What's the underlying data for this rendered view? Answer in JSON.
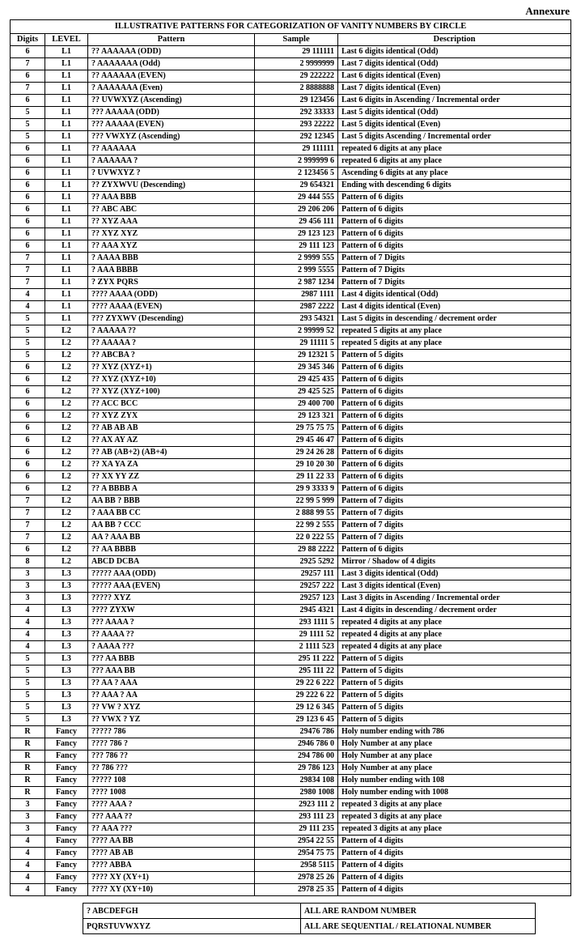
{
  "annexure_label": "Annexure",
  "title": "ILLUSTRATIVE PATTERNS FOR CATEGORIZATION OF VANITY NUMBERS BY CIRCLE",
  "headers": {
    "digits": "Digits",
    "level": "LEVEL",
    "pattern": "Pattern",
    "sample": "Sample",
    "description": "Description"
  },
  "rows": [
    {
      "d": "6",
      "l": "L1",
      "p": "?? AAAAAA (ODD)",
      "s": "29 111111",
      "desc": "Last 6 digits identical (Odd)"
    },
    {
      "d": "7",
      "l": "L1",
      "p": "? AAAAAAA (Odd)",
      "s": "2 9999999",
      "desc": "Last 7 digits identical (Odd)"
    },
    {
      "d": "6",
      "l": "L1",
      "p": "?? AAAAAA (EVEN)",
      "s": "29 222222",
      "desc": "Last 6 digits identical (Even)"
    },
    {
      "d": "7",
      "l": "L1",
      "p": "? AAAAAAA (Even)",
      "s": "2 8888888",
      "desc": "Last 7 digits identical (Even)"
    },
    {
      "d": "6",
      "l": "L1",
      "p": "?? UVWXYZ (Ascending)",
      "s": "29 123456",
      "desc": "Last 6 digits in Ascending / Incremental order"
    },
    {
      "d": "5",
      "l": "L1",
      "p": "??? AAAAA (ODD)",
      "s": "292 33333",
      "desc": "Last 5 digits identical (Odd)"
    },
    {
      "d": "5",
      "l": "L1",
      "p": "??? AAAAA (EVEN)",
      "s": "293 22222",
      "desc": "Last 5 digits identical (Even)"
    },
    {
      "d": "5",
      "l": "L1",
      "p": "??? VWXYZ (Ascending)",
      "s": "292 12345",
      "desc": "Last 5 digits Ascending / Incremental order"
    },
    {
      "d": "6",
      "l": "L1",
      "p": "?? AAAAAA",
      "s": "29 111111",
      "desc": "repeated 6 digits at any place"
    },
    {
      "d": "6",
      "l": "L1",
      "p": "? AAAAAA ?",
      "s": "2 999999 6",
      "desc": "repeated 6 digits at any place"
    },
    {
      "d": "6",
      "l": "L1",
      "p": "? UVWXYZ ?",
      "s": "2 123456 5",
      "desc": "Ascending 6 digits at any place"
    },
    {
      "d": "6",
      "l": "L1",
      "p": "?? ZYXWVU (Descending)",
      "s": "29 654321",
      "desc": "Ending with descending 6 digits"
    },
    {
      "d": "6",
      "l": "L1",
      "p": "?? AAA BBB",
      "s": "29 444 555",
      "desc": "Pattern of 6 digits"
    },
    {
      "d": "6",
      "l": "L1",
      "p": "?? ABC ABC",
      "s": "29 206 206",
      "desc": "Pattern of 6 digits"
    },
    {
      "d": "6",
      "l": "L1",
      "p": "?? XYZ AAA",
      "s": "29 456 111",
      "desc": "Pattern of 6 digits"
    },
    {
      "d": "6",
      "l": "L1",
      "p": "?? XYZ XYZ",
      "s": "29 123 123",
      "desc": "Pattern of 6 digits"
    },
    {
      "d": "6",
      "l": "L1",
      "p": "?? AAA XYZ",
      "s": "29 111 123",
      "desc": "Pattern of 6 digits"
    },
    {
      "d": "7",
      "l": "L1",
      "p": "? AAAA BBB",
      "s": "2 9999  555",
      "desc": "Pattern of 7 Digits"
    },
    {
      "d": "7",
      "l": "L1",
      "p": "? AAA BBBB",
      "s": "2 999  5555",
      "desc": "Pattern of 7 Digits"
    },
    {
      "d": "7",
      "l": "L1",
      "p": "? ZYX PQRS",
      "s": "2 987 1234",
      "desc": "Pattern of 7 Digits"
    },
    {
      "d": "4",
      "l": "L1",
      "p": "???? AAAA (ODD)",
      "s": "2987 1111",
      "desc": "Last 4 digits identical (Odd)"
    },
    {
      "d": "4",
      "l": "L1",
      "p": "???? AAAA (EVEN)",
      "s": "2987 2222",
      "desc": "Last 4 digits identical (Even)"
    },
    {
      "d": "5",
      "l": "L1",
      "p": "??? ZYXWV (Descending)",
      "s": "293 54321",
      "desc": "Last 5 digits in descending / decrement order"
    },
    {
      "d": "5",
      "l": "L2",
      "p": "? AAAAA ??",
      "s": "2 99999 52",
      "desc": "repeated 5 digits at any place"
    },
    {
      "d": "5",
      "l": "L2",
      "p": "?? AAAAA ?",
      "s": "29 11111 5",
      "desc": "repeated 5 digits at any place"
    },
    {
      "d": "5",
      "l": "L2",
      "p": "?? ABCBA ?",
      "s": "29 12321 5",
      "desc": "Pattern of 5 digits"
    },
    {
      "d": "6",
      "l": "L2",
      "p": "?? XYZ (XYZ+1)",
      "s": "29 345 346",
      "desc": "Pattern of 6 digits"
    },
    {
      "d": "6",
      "l": "L2",
      "p": "?? XYZ (XYZ+10)",
      "s": "29 425 435",
      "desc": "Pattern of 6 digits"
    },
    {
      "d": "6",
      "l": "L2",
      "p": "?? XYZ (XYZ+100)",
      "s": "29 425 525",
      "desc": "Pattern of 6 digits"
    },
    {
      "d": "6",
      "l": "L2",
      "p": "?? ACC BCC",
      "s": "29 400 700",
      "desc": "Pattern of 6 digits"
    },
    {
      "d": "6",
      "l": "L2",
      "p": "?? XYZ ZYX",
      "s": "29 123 321",
      "desc": "Pattern of 6 digits"
    },
    {
      "d": "6",
      "l": "L2",
      "p": "?? AB AB AB",
      "s": "29 75 75 75",
      "desc": "Pattern of 6 digits"
    },
    {
      "d": "6",
      "l": "L2",
      "p": "?? AX AY AZ",
      "s": "29 45 46 47",
      "desc": "Pattern of 6 digits"
    },
    {
      "d": "6",
      "l": "L2",
      "p": "?? AB (AB+2) (AB+4)",
      "s": "29 24 26 28",
      "desc": "Pattern of 6 digits"
    },
    {
      "d": "6",
      "l": "L2",
      "p": "?? XA YA ZA",
      "s": "29 10 20 30",
      "desc": "Pattern of 6 digits"
    },
    {
      "d": "6",
      "l": "L2",
      "p": "?? XX YY ZZ",
      "s": "29 11 22 33",
      "desc": "Pattern of 6 digits"
    },
    {
      "d": "6",
      "l": "L2",
      "p": "?? A BBBB A",
      "s": "29 9 3333 9",
      "desc": "Pattern of 6 digits"
    },
    {
      "d": "7",
      "l": "L2",
      "p": "AA BB ? BBB",
      "s": "22 99 5 999",
      "desc": "Pattern of 7 digits"
    },
    {
      "d": "7",
      "l": "L2",
      "p": "? AAA BB CC",
      "s": "2 888 99 55",
      "desc": "Pattern of 7 digits"
    },
    {
      "d": "7",
      "l": "L2",
      "p": "AA BB ? CCC",
      "s": "22 99 2 555",
      "desc": "Pattern of 7 digits"
    },
    {
      "d": "7",
      "l": "L2",
      "p": "AA ? AAA BB",
      "s": "22 0 222 55",
      "desc": "Pattern of 7 digits"
    },
    {
      "d": "6",
      "l": "L2",
      "p": "?? AA BBBB",
      "s": "29 88 2222",
      "desc": "Pattern of 6 digits"
    },
    {
      "d": "8",
      "l": "L2",
      "p": "ABCD DCBA",
      "s": "2925 5292",
      "desc": "Mirror / Shadow of 4 digits"
    },
    {
      "d": "3",
      "l": "L3",
      "p": "????? AAA (ODD)",
      "s": "29257 111",
      "desc": "Last 3 digits identical (Odd)"
    },
    {
      "d": "3",
      "l": "L3",
      "p": "????? AAA (EVEN)",
      "s": "29257 222",
      "desc": "Last 3 digits identical (Even)"
    },
    {
      "d": "3",
      "l": "L3",
      "p": "????? XYZ",
      "s": "29257 123",
      "desc": "Last 3 digits in Ascending / Incremental order"
    },
    {
      "d": "4",
      "l": "L3",
      "p": "???? ZYXW",
      "s": "2945 4321",
      "desc": "Last 4 digits in descending / decrement order"
    },
    {
      "d": "4",
      "l": "L3",
      "p": "??? AAAA ?",
      "s": "293 1111 5",
      "desc": "repeated 4 digits at any place"
    },
    {
      "d": "4",
      "l": "L3",
      "p": "?? AAAA ??",
      "s": "29 1111 52",
      "desc": "repeated 4 digits at any place"
    },
    {
      "d": "4",
      "l": "L3",
      "p": "? AAAA ???",
      "s": "2 1111 523",
      "desc": "repeated 4 digits at any place"
    },
    {
      "d": "5",
      "l": "L3",
      "p": "??? AA BBB",
      "s": "295 11 222",
      "desc": "Pattern of 5 digits"
    },
    {
      "d": "5",
      "l": "L3",
      "p": "??? AAA BB",
      "s": "295 111 22",
      "desc": "Pattern of 5 digits"
    },
    {
      "d": "5",
      "l": "L3",
      "p": "?? AA ? AAA",
      "s": "29 22 6 222",
      "desc": "Pattern of 5 digits"
    },
    {
      "d": "5",
      "l": "L3",
      "p": "?? AAA ? AA",
      "s": "29 222 6 22",
      "desc": "Pattern of 5 digits"
    },
    {
      "d": "5",
      "l": "L3",
      "p": "?? VW ? XYZ",
      "s": "29 12 6 345",
      "desc": "Pattern of 5 digits"
    },
    {
      "d": "5",
      "l": "L3",
      "p": "?? VWX ? YZ",
      "s": "29 123 6 45",
      "desc": "Pattern of 5 digits"
    },
    {
      "d": "R",
      "l": "Fancy",
      "p": "????? 786",
      "s": "29476 786",
      "desc": "Holy number ending with 786"
    },
    {
      "d": "R",
      "l": "Fancy",
      "p": "???? 786 ?",
      "s": "2946 786 0",
      "desc": "Holy Number at any place"
    },
    {
      "d": "R",
      "l": "Fancy",
      "p": "??? 786 ??",
      "s": "294 786 00",
      "desc": "Holy Number at any place"
    },
    {
      "d": "R",
      "l": "Fancy",
      "p": "?? 786 ???",
      "s": "29 786 123",
      "desc": "Holy Number at any place"
    },
    {
      "d": "R",
      "l": "Fancy",
      "p": "????? 108",
      "s": "29834 108",
      "desc": "Holy number ending with 108"
    },
    {
      "d": "R",
      "l": "Fancy",
      "p": "???? 1008",
      "s": "2980 1008",
      "desc": "Holy number ending with 1008"
    },
    {
      "d": "3",
      "l": "Fancy",
      "p": "???? AAA ?",
      "s": "2923 111 2",
      "desc": "repeated 3 digits at any place"
    },
    {
      "d": "3",
      "l": "Fancy",
      "p": "??? AAA ??",
      "s": "293 111 23",
      "desc": "repeated 3 digits at any place"
    },
    {
      "d": "3",
      "l": "Fancy",
      "p": "?? AAA ???",
      "s": "29 111 235",
      "desc": "repeated 3 digits at any place"
    },
    {
      "d": "4",
      "l": "Fancy",
      "p": "???? AA BB",
      "s": "2954 22 55",
      "desc": "Pattern of 4 digits"
    },
    {
      "d": "4",
      "l": "Fancy",
      "p": "???? AB AB",
      "s": "2954 75 75",
      "desc": "Pattern of 4 digits"
    },
    {
      "d": "4",
      "l": "Fancy",
      "p": "???? ABBA",
      "s": "2958 5115",
      "desc": "Pattern of 4 digits"
    },
    {
      "d": "4",
      "l": "Fancy",
      "p": "???? XY (XY+1)",
      "s": "2978 25 26",
      "desc": "Pattern of 4 digits"
    },
    {
      "d": "4",
      "l": "Fancy",
      "p": "???? XY (XY+10)",
      "s": "2978 25 35",
      "desc": "Pattern of 4 digits"
    }
  ],
  "legend": [
    {
      "k": "? ABCDEFGH",
      "v": "ALL ARE RANDOM NUMBER"
    },
    {
      "k": "PQRSTUVWXYZ",
      "v": "ALL ARE SEQUENTIAL / RELATIONAL NUMBER"
    }
  ],
  "colors": {
    "background": "#ffffff",
    "text": "#000000",
    "border": "#000000"
  },
  "typography": {
    "font_family": "Times New Roman",
    "body_size_pt": 8,
    "header_size_pt": 8,
    "annex_size_pt": 10,
    "weight": "bold"
  }
}
